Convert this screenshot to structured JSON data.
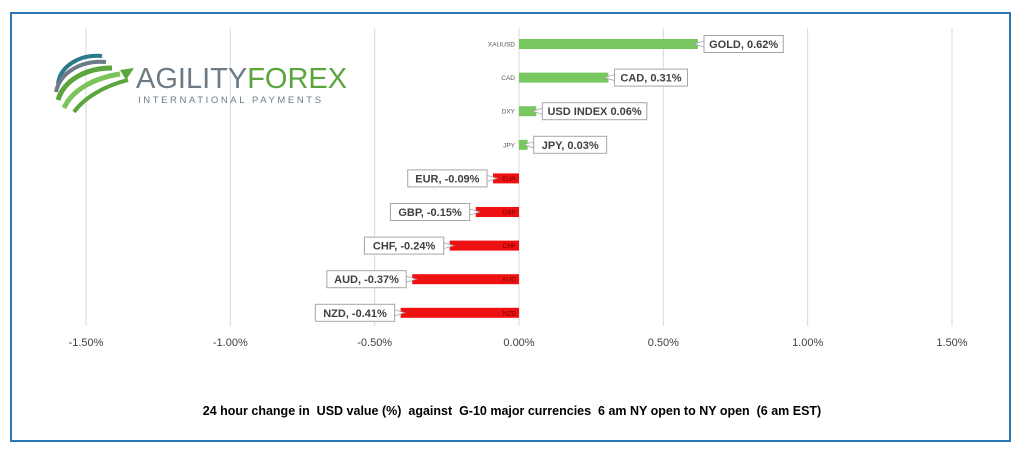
{
  "logo": {
    "word_part1": "AGILITY",
    "word_part2": "FOREX",
    "subtitle": "INTERNATIONAL PAYMENTS",
    "colors": {
      "gray": "#6d7b86",
      "green": "#5aa53c",
      "teal": "#2a7a8c"
    }
  },
  "caption": "24 hour change in  USD value (%)  against  G-10 major currencies  6 am NY open to NY open  (6 am EST)",
  "chart_data": {
    "type": "bar",
    "orientation": "horizontal",
    "categories": [
      "XAUUSD",
      "CAD",
      "DXY",
      "JPY",
      "EUR",
      "GBP",
      "CHF",
      "AUD",
      "NZD"
    ],
    "values": [
      0.62,
      0.31,
      0.06,
      0.03,
      -0.09,
      -0.15,
      -0.24,
      -0.37,
      -0.41
    ],
    "data_labels": [
      "GOLD, 0.62%",
      "CAD, 0.31%",
      "USD INDEX 0.06%",
      "JPY, 0.03%",
      "EUR, -0.09%",
      "GBP, -0.15%",
      "CHF, -0.24%",
      "AUD, -0.37%",
      "NZD, -0.41%"
    ],
    "x_ticks": [
      -1.5,
      -1.0,
      -0.5,
      0.0,
      0.5,
      1.0,
      1.5
    ],
    "x_tick_labels": [
      "-1.50%",
      "-1.00%",
      "-0.50%",
      "0.00%",
      "0.50%",
      "1.00%",
      "1.50%"
    ],
    "xlim": [
      -1.5,
      1.5
    ],
    "grid": "vertical",
    "legend": "none",
    "colors": {
      "positive": "#79c760",
      "negative": "#ee1111",
      "grid": "#d9d9d9",
      "label_border": "#a6a6a6"
    }
  }
}
